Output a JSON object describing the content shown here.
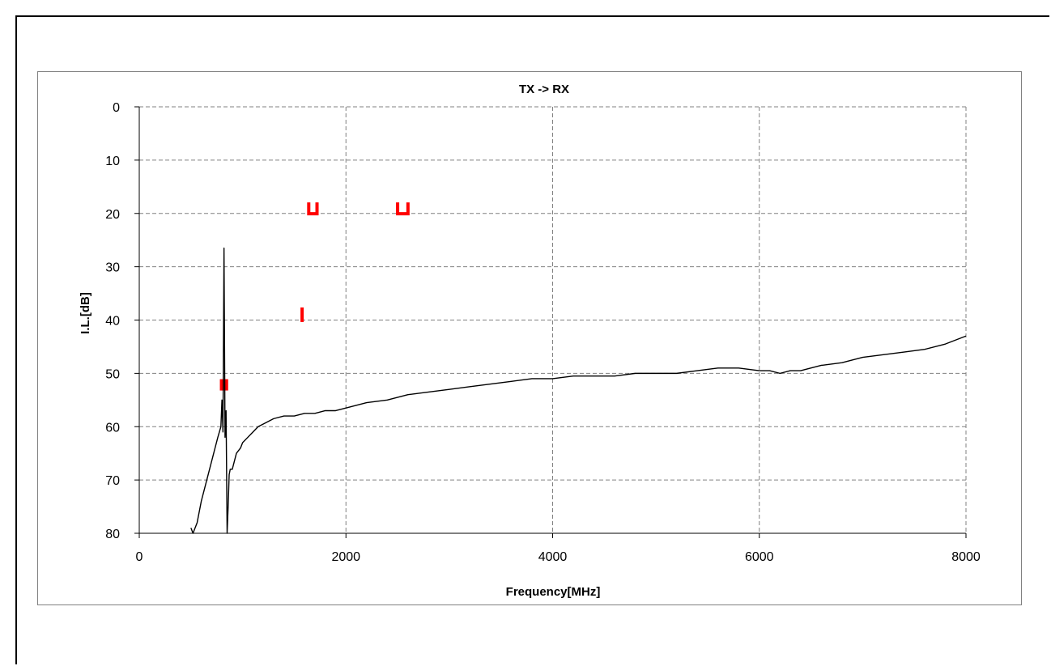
{
  "chart_data": {
    "type": "line",
    "title": "TX -> RX",
    "xlabel": "Frequency[MHz]",
    "ylabel": "I.L.[dB]",
    "xlim": [
      0,
      8000
    ],
    "ylim": [
      80,
      0
    ],
    "y_axis_inverted": true,
    "xticks": [
      0,
      2000,
      4000,
      6000,
      8000
    ],
    "yticks": [
      0,
      10,
      20,
      30,
      40,
      50,
      60,
      70,
      80
    ],
    "grid": true,
    "grid_style": "dashed",
    "legend": "none",
    "colors": {
      "trace": "#000000",
      "spec": "#ff0000",
      "grid": "#808080"
    },
    "series": [
      {
        "values_x": [
          500,
          520,
          560,
          600,
          640,
          680,
          720,
          760,
          790,
          800,
          810,
          820,
          830,
          840,
          850,
          860,
          870,
          880,
          900,
          940,
          980,
          1000,
          1050,
          1100,
          1150,
          1200,
          1300,
          1400,
          1500,
          1600,
          1700,
          1800,
          1900,
          2000,
          2200,
          2400,
          2600,
          2800,
          3000,
          3200,
          3400,
          3600,
          3800,
          4000,
          4200,
          4400,
          4600,
          4800,
          5000,
          5200,
          5400,
          5600,
          5800,
          6000,
          6100,
          6200,
          6300,
          6400,
          6600,
          6800,
          7000,
          7200,
          7400,
          7600,
          7800,
          8000
        ],
        "values_y": [
          79,
          80,
          78,
          74,
          71,
          68,
          65,
          62,
          60,
          55,
          61,
          26.5,
          62,
          57,
          80,
          75,
          69,
          68,
          68,
          65,
          64,
          63,
          62,
          61,
          60,
          59.5,
          58.5,
          58,
          58,
          57.5,
          57.5,
          57,
          57,
          56.5,
          55.5,
          55,
          54,
          53.5,
          53,
          52.5,
          52,
          51.5,
          51,
          51,
          50.5,
          50.5,
          50.5,
          50,
          50,
          50,
          49.5,
          49,
          49,
          49.5,
          49.5,
          50,
          49.5,
          49.5,
          48.5,
          48,
          47,
          46.5,
          46,
          45.5,
          44.5,
          43
        ]
      }
    ],
    "spec_marks": [
      {
        "x": [
          780,
          860
        ],
        "y": 52,
        "shape": "block"
      },
      {
        "x": [
          1640,
          1720
        ],
        "y": 19,
        "shape": "bracket"
      },
      {
        "x": [
          2500,
          2600
        ],
        "y": 19,
        "shape": "bracket"
      },
      {
        "x": [
          1560,
          1580
        ],
        "y": 39,
        "shape": "bar"
      }
    ]
  }
}
